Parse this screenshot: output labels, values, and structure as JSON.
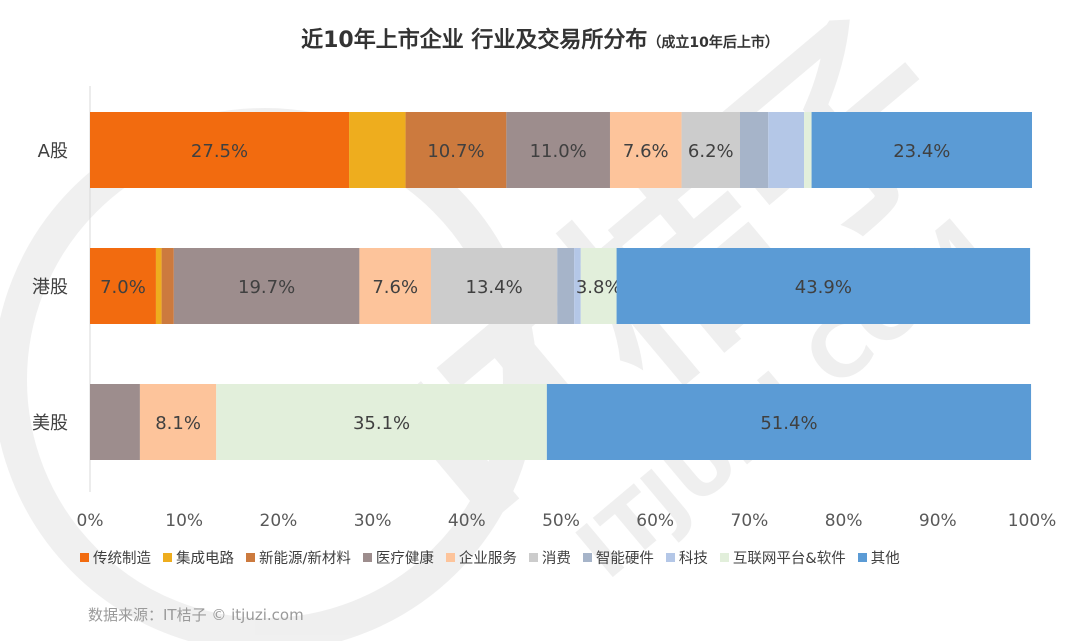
{
  "header": {
    "title": "近10年上市企业 行业及交易所分布",
    "subtitle": "（成立10年后上市）"
  },
  "source": "数据来源：IT桔子 © itjuzi.com",
  "watermark": {
    "text": "IT桔子",
    "url": "ITJUZI.COM"
  },
  "chart_data": {
    "type": "bar",
    "orientation": "horizontal",
    "stacked": "percent",
    "title": "近10年上市企业 行业及交易所分布",
    "subtitle": "（成立10年后上市）",
    "categories": [
      "A股",
      "港股",
      "美股"
    ],
    "xlim": [
      0,
      100
    ],
    "x_ticks": [
      "0%",
      "10%",
      "20%",
      "30%",
      "40%",
      "50%",
      "60%",
      "70%",
      "80%",
      "90%",
      "100%"
    ],
    "grid": false,
    "legend_position": "bottom",
    "series": [
      {
        "name": "传统制造",
        "color": "#f26b0f",
        "values": [
          27.5,
          7.0,
          0.0
        ],
        "labels": [
          "27.5%",
          "7.0%",
          ""
        ]
      },
      {
        "name": "集成电路",
        "color": "#eead1e",
        "values": [
          6.0,
          0.6,
          0.0
        ],
        "labels": [
          "",
          "",
          ""
        ]
      },
      {
        "name": "新能源/新材料",
        "color": "#cc7a3e",
        "values": [
          10.7,
          1.3,
          0.0
        ],
        "labels": [
          "10.7%",
          "",
          ""
        ]
      },
      {
        "name": "医疗健康",
        "color": "#9d8d8d",
        "values": [
          11.0,
          19.7,
          5.3
        ],
        "labels": [
          "11.0%",
          "19.7%",
          ""
        ]
      },
      {
        "name": "企业服务",
        "color": "#fdc49b",
        "values": [
          7.6,
          7.6,
          8.1
        ],
        "labels": [
          "7.6%",
          "7.6%",
          "8.1%"
        ]
      },
      {
        "name": "消费",
        "color": "#cccccc",
        "values": [
          6.2,
          13.4,
          0.0
        ],
        "labels": [
          "6.2%",
          "13.4%",
          ""
        ]
      },
      {
        "name": "智能硬件",
        "color": "#a6b4c9",
        "values": [
          3.0,
          1.8,
          0.0
        ],
        "labels": [
          "",
          "",
          ""
        ]
      },
      {
        "name": "科技",
        "color": "#b4c7e7",
        "values": [
          3.8,
          0.7,
          0.0
        ],
        "labels": [
          "",
          "",
          ""
        ]
      },
      {
        "name": "互联网平台&软件",
        "color": "#e2efdb",
        "values": [
          0.8,
          3.8,
          35.1
        ],
        "labels": [
          "",
          "3.8%",
          "35.1%"
        ]
      },
      {
        "name": "其他",
        "color": "#5b9bd5",
        "values": [
          23.4,
          43.9,
          51.4
        ],
        "labels": [
          "23.4%",
          "43.9%",
          "51.4%"
        ]
      }
    ]
  }
}
